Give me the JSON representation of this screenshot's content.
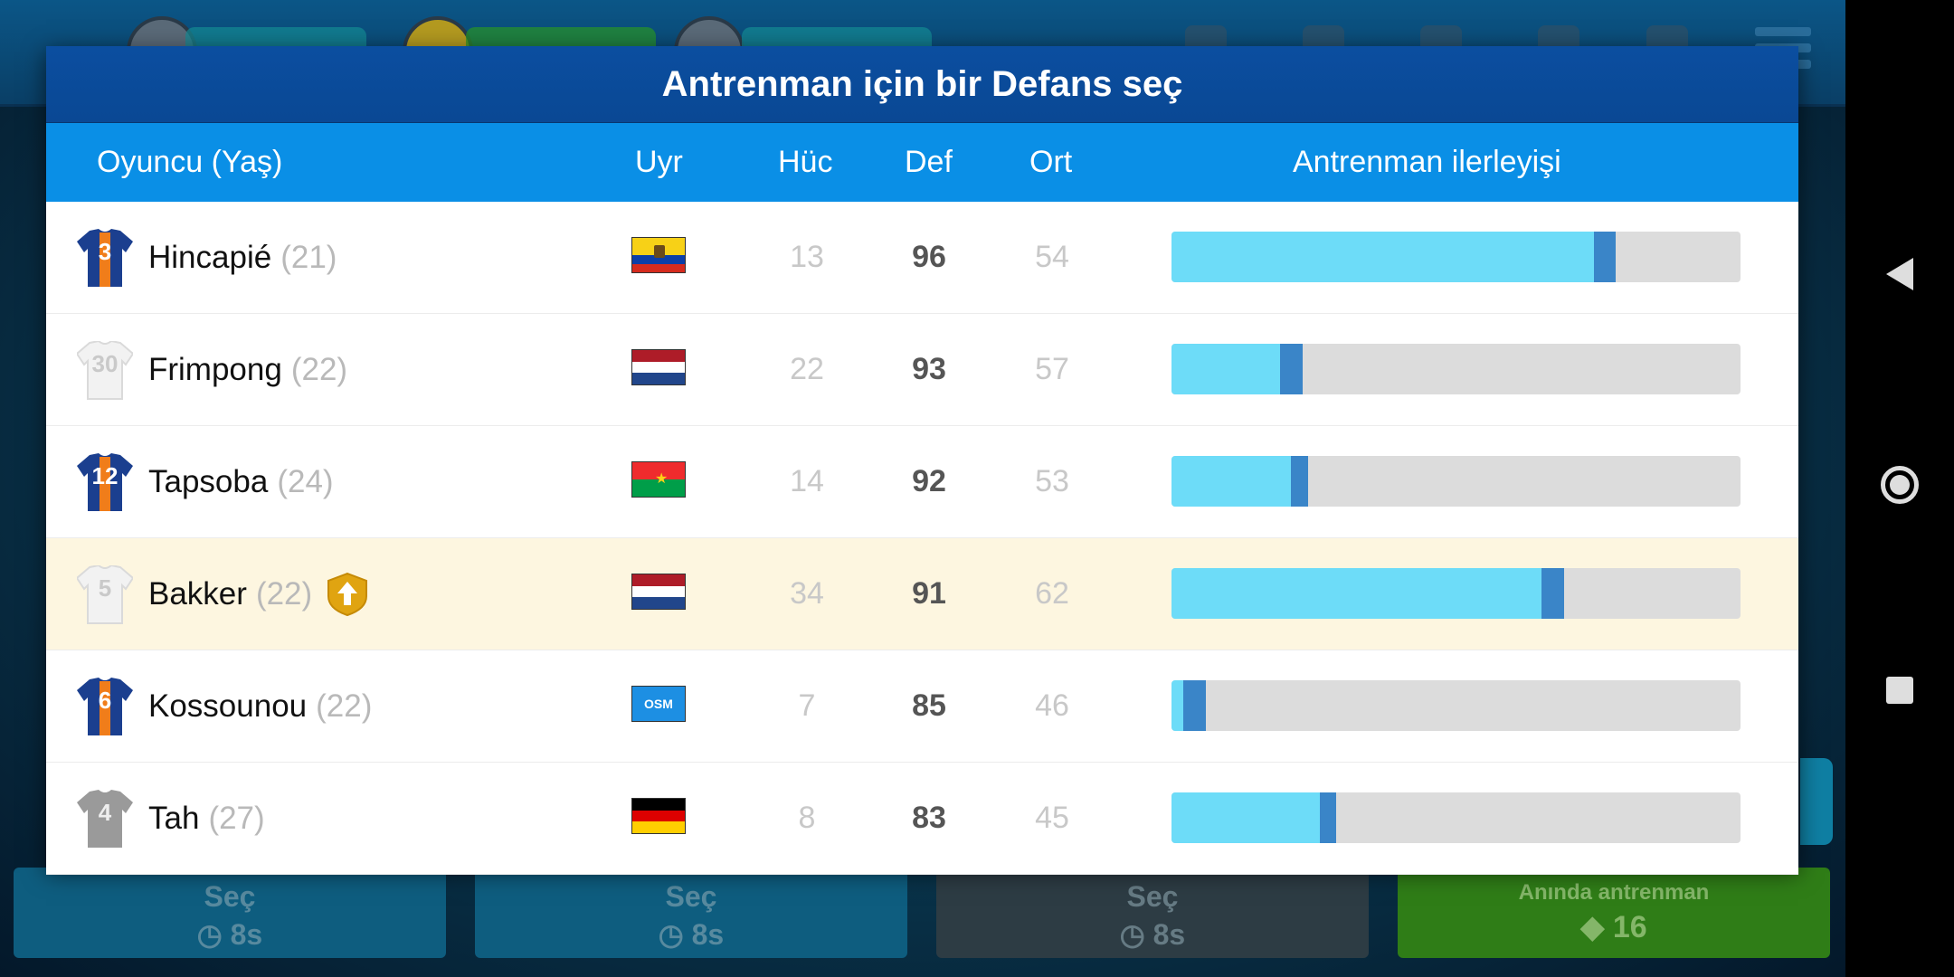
{
  "background": {
    "slots": [
      {
        "label": "Seç",
        "cost": "8s"
      },
      {
        "label": "Seç",
        "cost": "8s"
      },
      {
        "label": "Seç",
        "cost": "8s"
      },
      {
        "label": "Anında antrenman",
        "cost": "16"
      }
    ]
  },
  "modal": {
    "title": "Antrenman için bir Defans seç",
    "columns": {
      "player": "Oyuncu (Yaş)",
      "nat": "Uyr",
      "att": "Hüc",
      "def": "Def",
      "ovr": "Ort",
      "progress": "Antrenman ilerleyişi"
    },
    "players": [
      {
        "number": "3",
        "name": "Hincapié",
        "age": "(21)",
        "flag": "ecuador",
        "att": "13",
        "def": "96",
        "ovr": "54",
        "progress": 0.742,
        "new_progress": 0.78,
        "jersey": "team",
        "upgrade": false,
        "highlight": false
      },
      {
        "number": "30",
        "name": "Frimpong",
        "age": "(22)",
        "flag": "netherlands",
        "att": "22",
        "def": "93",
        "ovr": "57",
        "progress": 0.19,
        "new_progress": 0.23,
        "jersey": "white",
        "upgrade": false,
        "highlight": false
      },
      {
        "number": "12",
        "name": "Tapsoba",
        "age": "(24)",
        "flag": "burkina-faso",
        "att": "14",
        "def": "92",
        "ovr": "53",
        "progress": 0.21,
        "new_progress": 0.24,
        "jersey": "team",
        "upgrade": false,
        "highlight": false
      },
      {
        "number": "5",
        "name": "Bakker",
        "age": "(22)",
        "flag": "netherlands",
        "att": "34",
        "def": "91",
        "ovr": "62",
        "progress": 0.65,
        "new_progress": 0.69,
        "jersey": "white",
        "upgrade": true,
        "highlight": true
      },
      {
        "number": "6",
        "name": "Kossounou",
        "age": "(22)",
        "flag": "osm",
        "att": "7",
        "def": "85",
        "ovr": "46",
        "progress": 0.02,
        "new_progress": 0.06,
        "jersey": "team",
        "upgrade": false,
        "highlight": false
      },
      {
        "number": "4",
        "name": "Tah",
        "age": "(27)",
        "flag": "germany",
        "att": "8",
        "def": "83",
        "ovr": "45",
        "progress": 0.26,
        "new_progress": 0.29,
        "jersey": "grey",
        "upgrade": false,
        "highlight": false
      }
    ]
  },
  "icons": {
    "upgrade": "arrow-up-badge-icon",
    "nav": [
      "back-icon",
      "home-icon",
      "recents-icon"
    ]
  },
  "colors": {
    "title_bar": "#0b4ea0",
    "header_bar": "#0a8fe6",
    "progress_fill": "#6ddcf8",
    "progress_marker": "#3a85c8",
    "progress_track": "#dcdcdc",
    "highlight_row": "#fdf6e0"
  }
}
